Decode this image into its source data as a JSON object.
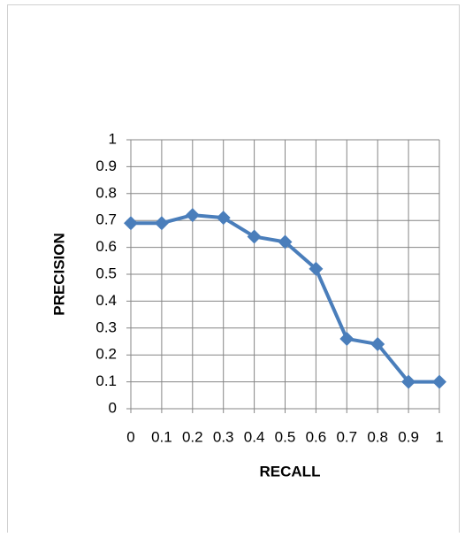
{
  "chart_data": {
    "type": "line",
    "x": [
      0,
      0.1,
      0.2,
      0.3,
      0.4,
      0.5,
      0.6,
      0.7,
      0.8,
      0.9,
      1
    ],
    "series": [
      {
        "name": "PRECISION",
        "color": "#4a7ebb",
        "values": [
          0.69,
          0.69,
          0.72,
          0.71,
          0.64,
          0.62,
          0.52,
          0.26,
          0.24,
          0.1,
          0.1
        ]
      }
    ],
    "xlabel": "RECALL",
    "ylabel": "PRECISION",
    "xlim": [
      0,
      1
    ],
    "xticks": [
      0,
      0.1,
      0.2,
      0.3,
      0.4,
      0.5,
      0.6,
      0.7,
      0.8,
      0.9,
      1
    ],
    "ylim": [
      0,
      1
    ],
    "yticks": [
      0,
      0.1,
      0.2,
      0.3,
      0.4,
      0.5,
      0.6,
      0.7,
      0.8,
      0.9,
      1
    ],
    "grid": true,
    "marker": "diamond"
  }
}
